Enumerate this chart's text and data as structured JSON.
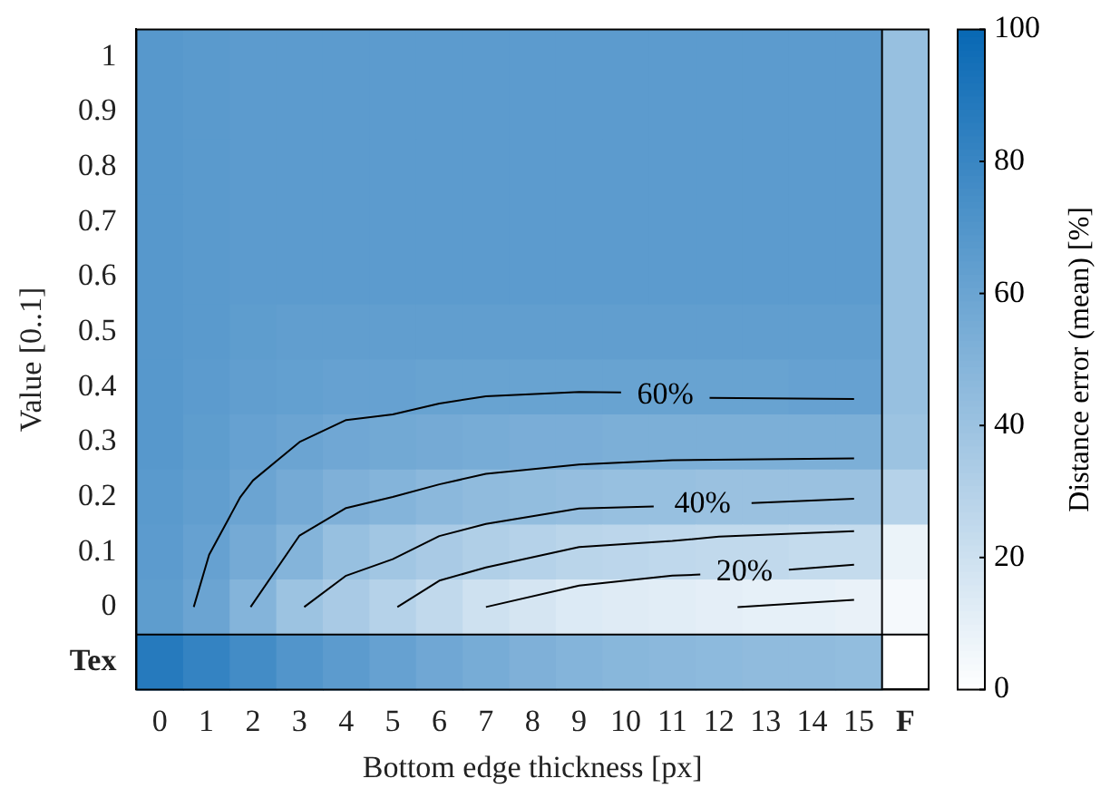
{
  "chart_data": {
    "type": "heatmap",
    "xlabel": "Bottom edge thickness [px]",
    "ylabel": "Value [0..1]",
    "clabel": "Distance error (mean) [%]",
    "xlim": [
      -0.5,
      16.5
    ],
    "xticks": [
      0,
      1,
      2,
      3,
      4,
      5,
      6,
      7,
      8,
      9,
      10,
      11,
      12,
      13,
      14,
      15,
      {
        "value": 16,
        "label": "F"
      }
    ],
    "ylim": [
      -0.15,
      1.05
    ],
    "yticks": [
      {
        "value": -0.1,
        "label": "Tex"
      },
      0,
      0.1,
      0.2,
      0.3,
      0.4,
      0.5,
      0.6,
      0.7,
      0.8,
      0.9,
      1
    ],
    "clim": [
      0,
      100
    ],
    "cticks": [
      0,
      20,
      40,
      60,
      80,
      100
    ],
    "cells": [
      [
        68,
        67,
        66,
        66,
        66,
        66,
        66,
        66,
        66,
        66,
        66,
        66,
        66,
        66,
        66,
        66,
        42
      ],
      [
        68,
        67,
        66,
        66,
        66,
        66,
        66,
        66,
        66,
        66,
        66,
        66,
        66,
        66,
        66,
        66,
        42
      ],
      [
        68,
        67,
        66,
        66,
        66,
        66,
        66,
        66,
        66,
        66,
        66,
        66,
        66,
        66,
        66,
        66,
        42
      ],
      [
        68,
        67,
        66,
        66,
        66,
        66,
        66,
        66,
        66,
        66,
        66,
        66,
        66,
        66,
        66,
        66,
        42
      ],
      [
        68,
        67,
        66,
        66,
        66,
        66,
        66,
        66,
        66,
        66,
        66,
        66,
        66,
        66,
        66,
        66,
        42
      ],
      [
        68,
        67,
        65,
        64,
        64,
        64,
        64,
        64,
        64,
        64,
        64,
        64,
        64,
        64,
        64,
        64,
        42
      ],
      [
        68,
        66,
        64,
        63,
        62,
        62,
        61,
        61,
        61,
        61,
        61,
        61,
        61,
        61,
        62,
        62,
        42
      ],
      [
        68,
        65,
        62,
        60,
        58,
        57,
        56,
        55,
        54,
        54,
        53,
        53,
        53,
        53,
        53,
        53,
        40
      ],
      [
        67,
        64,
        60,
        56,
        52,
        50,
        47,
        45,
        44,
        43,
        42,
        42,
        41,
        41,
        41,
        41,
        30
      ],
      [
        66,
        62,
        56,
        50,
        42,
        38,
        35,
        32,
        30,
        28,
        27,
        26,
        25,
        25,
        24,
        24,
        8
      ],
      [
        65,
        60,
        50,
        40,
        35,
        30,
        25,
        20,
        17,
        14,
        13,
        12,
        11,
        10,
        10,
        9,
        4
      ],
      [
        88,
        82,
        76,
        70,
        66,
        62,
        58,
        55,
        52,
        50,
        48,
        47,
        46,
        45,
        45,
        44,
        null
      ]
    ],
    "series": [
      {
        "type": "line",
        "color": "#000000",
        "x": [
          0.73,
          1.06,
          1.73,
          2,
          3,
          4,
          5,
          6,
          7,
          9,
          9.9,
          10.3,
          11.8,
          14.9
        ],
        "values": [
          0,
          0.095,
          0.2,
          0.23,
          0.3,
          0.34,
          0.35,
          0.37,
          0.383,
          0.391,
          0.39,
          null,
          0.38,
          0.378
        ]
      },
      {
        "type": "line",
        "color": "#000000",
        "x": [
          1.95,
          3,
          4,
          5,
          6,
          7,
          9,
          11,
          14.9
        ],
        "values": [
          0,
          0.13,
          0.18,
          0.2,
          0.223,
          0.242,
          0.259,
          0.267,
          0.27
        ]
      },
      {
        "type": "line",
        "color": "#000000",
        "x": [
          3.1,
          4,
          5,
          6,
          7,
          9,
          10.6,
          11.2,
          12.7,
          14.9
        ],
        "values": [
          0,
          0.057,
          0.087,
          0.129,
          0.151,
          0.179,
          0.183,
          null,
          0.189,
          0.197
        ]
      },
      {
        "type": "line",
        "color": "#000000",
        "x": [
          5.1,
          6,
          7,
          9,
          11,
          12,
          14.9
        ],
        "values": [
          0,
          0.048,
          0.072,
          0.109,
          0.12,
          0.128,
          0.138
        ]
      },
      {
        "type": "line",
        "color": "#000000",
        "x": [
          7,
          9,
          11,
          11.6,
          12.1,
          13.5,
          14.9
        ],
        "values": [
          0,
          0.039,
          0.057,
          0.059,
          null,
          0.068,
          0.077
        ]
      },
      {
        "type": "line",
        "color": "#000000",
        "x": [
          12.4,
          14.9
        ],
        "values": [
          0,
          0.013
        ]
      }
    ],
    "annotations": [
      "60%",
      "40%",
      "20%"
    ],
    "ref_lines": [
      {
        "axis": "y",
        "value": -0.05,
        "color": "#000000"
      },
      {
        "axis": "x",
        "value": 15.5,
        "color": "#000000"
      }
    ]
  }
}
